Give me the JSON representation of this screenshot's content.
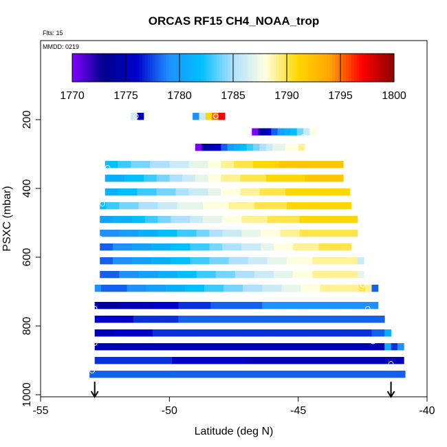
{
  "chart_data": {
    "type": "heatmap",
    "title": "ORCAS RF15 CH4_NOAA_trop",
    "corner_text": [
      "Flts: 15",
      "MMDD: 0219"
    ],
    "xlabel": "Latitude (deg N)",
    "ylabel": "PSXC (mbar)",
    "xlim": [
      -55,
      -40
    ],
    "ylim": [
      1000,
      0
    ],
    "xticks": [
      -55,
      -50,
      -45,
      -40
    ],
    "yticks": [
      200,
      400,
      600,
      800,
      1000
    ],
    "colorbar": {
      "range": [
        1770,
        1800
      ],
      "ticks": [
        1770,
        1775,
        1780,
        1785,
        1790,
        1795,
        1800
      ],
      "colors": [
        "#7f00ff",
        "#00008b",
        "#0000cd",
        "#1e90ff",
        "#00bfff",
        "#b0e0ff",
        "#ffffe0",
        "#ffd700",
        "#ffa500",
        "#ff0000",
        "#8b0000"
      ]
    },
    "cell_width_deg": 0.25,
    "cell_height_mbar": 20,
    "rows": [
      {
        "p": 190,
        "lat_start": -51.5,
        "values": [
          1786,
          1775
        ]
      },
      {
        "p": 190,
        "lat_start": -49.1,
        "values": [
          1779,
          1786,
          1791,
          1795,
          1797
        ]
      },
      {
        "p": 235,
        "lat_start": -46.8,
        "values": [
          1770,
          1774,
          1776,
          1778,
          1780,
          1781,
          1782,
          1784,
          1786,
          1788
        ]
      },
      {
        "p": 280,
        "lat_start": -49.0,
        "values": [
          1770,
          1774,
          1775,
          1776,
          1778,
          1780,
          1781,
          1782,
          1783,
          1784,
          1785,
          1786,
          1787,
          1787,
          1788,
          1788,
          1789
        ]
      },
      {
        "p": 330,
        "lat_start": -52.5,
        "values": [
          1782,
          1782,
          1783,
          1783,
          1784,
          1784,
          1784,
          1785,
          1785,
          1785,
          1786,
          1786,
          1786,
          1787,
          1787,
          1787,
          1788,
          1788,
          1789,
          1789,
          1790,
          1790,
          1790,
          1791,
          1791,
          1791,
          1791,
          1792,
          1792,
          1792,
          1792,
          1792,
          1792,
          1792,
          1792,
          1792,
          1792
        ]
      },
      {
        "p": 370,
        "lat_start": -52.5,
        "values": [
          1781,
          1781,
          1781,
          1782,
          1782,
          1782,
          1783,
          1783,
          1784,
          1784,
          1785,
          1785,
          1786,
          1786,
          1787,
          1787,
          1788,
          1788,
          1789,
          1789,
          1789,
          1790,
          1790,
          1790,
          1790,
          1791,
          1791,
          1791,
          1791,
          1791,
          1791,
          1792,
          1792,
          1792,
          1792,
          1792,
          1792
        ]
      },
      {
        "p": 410,
        "lat_start": -52.5,
        "values": [
          1781,
          1781,
          1782,
          1782,
          1782,
          1783,
          1783,
          1783,
          1784,
          1784,
          1784,
          1785,
          1785,
          1786,
          1786,
          1786,
          1787,
          1787,
          1788,
          1788,
          1788,
          1789,
          1789,
          1789,
          1790,
          1790,
          1790,
          1790,
          1791,
          1791,
          1791,
          1791,
          1791,
          1791,
          1791,
          1791,
          1791,
          1791
        ]
      },
      {
        "p": 450,
        "lat_start": -52.7,
        "values": [
          1782,
          1783,
          1783,
          1784,
          1784,
          1784,
          1785,
          1785,
          1785,
          1786,
          1786,
          1786,
          1787,
          1787,
          1787,
          1787,
          1788,
          1788,
          1788,
          1788,
          1789,
          1789,
          1789,
          1789,
          1790,
          1790,
          1790,
          1790,
          1790,
          1791,
          1791,
          1791,
          1791,
          1791,
          1791,
          1791,
          1791,
          1791,
          1791
        ]
      },
      {
        "p": 490,
        "lat_start": -52.7,
        "values": [
          1780,
          1780,
          1781,
          1781,
          1781,
          1782,
          1782,
          1783,
          1783,
          1784,
          1784,
          1785,
          1785,
          1785,
          1786,
          1786,
          1787,
          1787,
          1787,
          1788,
          1788,
          1788,
          1789,
          1789,
          1789,
          1789,
          1790,
          1790,
          1790,
          1790,
          1790,
          1791,
          1791,
          1791,
          1791,
          1791,
          1791,
          1791,
          1791,
          1791
        ]
      },
      {
        "p": 530,
        "lat_start": -52.7,
        "values": [
          1779,
          1779,
          1779,
          1780,
          1780,
          1780,
          1781,
          1781,
          1781,
          1782,
          1782,
          1782,
          1783,
          1783,
          1783,
          1784,
          1784,
          1785,
          1785,
          1786,
          1786,
          1786,
          1787,
          1787,
          1787,
          1788,
          1788,
          1788,
          1789,
          1789,
          1789,
          1790,
          1790,
          1790,
          1790,
          1790,
          1790,
          1790,
          1790,
          1790
        ]
      },
      {
        "p": 570,
        "lat_start": -52.7,
        "values": [
          1778,
          1778,
          1779,
          1779,
          1779,
          1780,
          1780,
          1780,
          1781,
          1781,
          1781,
          1782,
          1782,
          1782,
          1783,
          1783,
          1783,
          1784,
          1784,
          1785,
          1785,
          1785,
          1786,
          1786,
          1786,
          1787,
          1787,
          1788,
          1788,
          1788,
          1789,
          1789,
          1789,
          1789,
          1790,
          1790,
          1790,
          1790,
          1790
        ]
      },
      {
        "p": 610,
        "lat_start": -52.7,
        "values": [
          1778,
          1778,
          1779,
          1779,
          1779,
          1780,
          1780,
          1780,
          1781,
          1781,
          1781,
          1782,
          1782,
          1782,
          1783,
          1783,
          1783,
          1784,
          1784,
          1784,
          1785,
          1785,
          1785,
          1786,
          1786,
          1786,
          1787,
          1787,
          1787,
          1788,
          1788,
          1788,
          1788,
          1789,
          1789,
          1789,
          1789,
          1789,
          1789,
          1789,
          1786
        ]
      },
      {
        "p": 650,
        "lat_start": -52.7,
        "values": [
          1778,
          1778,
          1778,
          1779,
          1779,
          1779,
          1780,
          1780,
          1780,
          1781,
          1781,
          1781,
          1782,
          1782,
          1782,
          1783,
          1783,
          1783,
          1784,
          1784,
          1784,
          1785,
          1785,
          1785,
          1786,
          1786,
          1786,
          1787,
          1787,
          1787,
          1788,
          1788,
          1788,
          1789,
          1789,
          1789,
          1789,
          1789,
          1789,
          1789,
          1787
        ]
      },
      {
        "p": 690,
        "lat_start": -52.9,
        "values": [
          1779,
          1778,
          1778,
          1778,
          1778,
          1779,
          1779,
          1779,
          1780,
          1780,
          1780,
          1781,
          1781,
          1781,
          1782,
          1782,
          1782,
          1783,
          1783,
          1783,
          1784,
          1784,
          1784,
          1785,
          1785,
          1785,
          1786,
          1786,
          1786,
          1787,
          1787,
          1787,
          1788,
          1788,
          1788,
          1789,
          1789,
          1789,
          1789,
          1789,
          1789,
          1790,
          1789,
          1778
        ]
      },
      {
        "p": 740,
        "lat_start": -52.9,
        "values": [
          1774,
          1774,
          1774,
          1774,
          1775,
          1775,
          1775,
          1775,
          1775,
          1776,
          1776,
          1776,
          1776,
          1777,
          1777,
          1777,
          1777,
          1777,
          1778,
          1778,
          1778,
          1778,
          1778,
          1778,
          1778,
          1778,
          1779,
          1779,
          1779,
          1779,
          1779,
          1779,
          1779,
          1779,
          1779,
          1779,
          1779,
          1779,
          1779,
          1779,
          1779,
          1779,
          1779,
          1779
        ]
      },
      {
        "p": 780,
        "lat_start": -52.9,
        "values": [
          1776,
          1776,
          1776,
          1776,
          1776,
          1776,
          1777,
          1777,
          1777,
          1777,
          1777,
          1777,
          1777,
          1778,
          1778,
          1778,
          1778,
          1778,
          1778,
          1778,
          1778,
          1778,
          1778,
          1778,
          1778,
          1778,
          1778,
          1778,
          1778,
          1778,
          1778,
          1778,
          1778,
          1778,
          1778,
          1778,
          1778,
          1778,
          1778,
          1778,
          1778,
          1778,
          1778,
          1778,
          1778
        ]
      },
      {
        "p": 820,
        "lat_start": -52.9,
        "values": [
          1775,
          1775,
          1775,
          1776,
          1776,
          1776,
          1776,
          1776,
          1776,
          1777,
          1777,
          1777,
          1777,
          1777,
          1777,
          1777,
          1777,
          1777,
          1777,
          1777,
          1777,
          1777,
          1777,
          1777,
          1777,
          1777,
          1777,
          1777,
          1777,
          1777,
          1777,
          1777,
          1777,
          1777,
          1777,
          1777,
          1777,
          1777,
          1777,
          1777,
          1777,
          1777,
          1777,
          1778,
          1778,
          1781
        ]
      },
      {
        "p": 860,
        "lat_start": -52.9,
        "values": [
          1775,
          1775,
          1775,
          1775,
          1775,
          1775,
          1775,
          1775,
          1775,
          1775,
          1775,
          1775,
          1775,
          1775,
          1775,
          1775,
          1775,
          1775,
          1775,
          1775,
          1775,
          1775,
          1775,
          1775,
          1775,
          1775,
          1775,
          1775,
          1775,
          1775,
          1775,
          1775,
          1775,
          1775,
          1775,
          1775,
          1775,
          1775,
          1775,
          1775,
          1775,
          1775,
          1775,
          1775,
          1775,
          1781,
          1777,
          1779
        ]
      },
      {
        "p": 900,
        "lat_start": -52.9,
        "values": [
          1777,
          1777,
          1777,
          1777,
          1777,
          1777,
          1777,
          1777,
          1777,
          1777,
          1777,
          1777,
          1776,
          1776,
          1776,
          1776,
          1776,
          1776,
          1776,
          1776,
          1776,
          1776,
          1776,
          1775,
          1775,
          1775,
          1775,
          1775,
          1775,
          1775,
          1775,
          1775,
          1775,
          1775,
          1775,
          1775,
          1775,
          1775,
          1775,
          1775,
          1775,
          1775,
          1775,
          1775,
          1775,
          1775,
          1775,
          1775
        ]
      },
      {
        "p": 940,
        "lat_start": -53.1,
        "values": [
          1778,
          1778,
          1778,
          1778,
          1778,
          1778,
          1778,
          1778,
          1778,
          1778,
          1778,
          1778,
          1778,
          1778,
          1778,
          1778,
          1778,
          1778,
          1778,
          1778,
          1778,
          1778,
          1778,
          1778,
          1778,
          1778,
          1778,
          1778,
          1778,
          1778,
          1778,
          1778,
          1778,
          1778,
          1778,
          1778,
          1778,
          1778,
          1778,
          1778,
          1778,
          1778,
          1778,
          1778,
          1778,
          1778,
          1778,
          1778,
          1778
        ]
      }
    ],
    "points": [
      {
        "lat": -51.3,
        "p": 190
      },
      {
        "lat": -48.2,
        "p": 190
      },
      {
        "lat": -44.8,
        "p": 250
      },
      {
        "lat": -52.4,
        "p": 340
      },
      {
        "lat": -43.4,
        "p": 350
      },
      {
        "lat": -52.6,
        "p": 445
      },
      {
        "lat": -52.7,
        "p": 545
      },
      {
        "lat": -42.6,
        "p": 630
      },
      {
        "lat": -52.9,
        "p": 670
      },
      {
        "lat": -42.5,
        "p": 680
      },
      {
        "lat": -52.9,
        "p": 750
      },
      {
        "lat": -42.3,
        "p": 750
      },
      {
        "lat": -52.9,
        "p": 850
      },
      {
        "lat": -42.1,
        "p": 845
      },
      {
        "lat": -41.9,
        "p": 880
      },
      {
        "lat": -41.6,
        "p": 880
      },
      {
        "lat": -41.4,
        "p": 880
      },
      {
        "lat": -41.4,
        "p": 910
      },
      {
        "lat": -53.0,
        "p": 930
      },
      {
        "lat": -41.4,
        "p": 960
      }
    ],
    "arrows": [
      -52.9,
      -41.4
    ]
  }
}
